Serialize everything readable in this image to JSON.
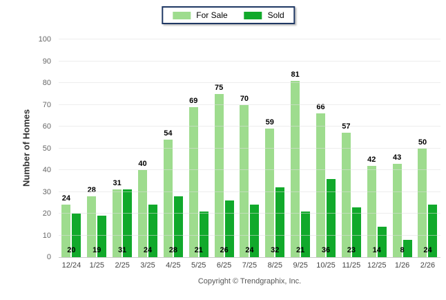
{
  "chart_data": {
    "type": "bar",
    "categories": [
      "12/24",
      "1/25",
      "2/25",
      "3/25",
      "4/25",
      "5/25",
      "6/25",
      "7/25",
      "8/25",
      "9/25",
      "10/25",
      "11/25",
      "12/25",
      "1/26",
      "2/26"
    ],
    "series": [
      {
        "name": "For Sale",
        "color": "#9edc8e",
        "values": [
          24,
          28,
          31,
          40,
          54,
          69,
          75,
          70,
          59,
          81,
          66,
          57,
          42,
          43,
          50
        ]
      },
      {
        "name": "Sold",
        "color": "#11a92b",
        "values": [
          20,
          19,
          31,
          24,
          28,
          21,
          26,
          24,
          32,
          21,
          36,
          23,
          14,
          8,
          24
        ]
      }
    ],
    "title": "",
    "xlabel": "",
    "ylabel": "Number of Homes",
    "ylim": [
      0,
      100
    ],
    "ytick_step": 10,
    "grid": true,
    "legend_position": "top-center",
    "legend_border_color": "#1f3864"
  },
  "footer": {
    "copyright": "Copyright © Trendgraphix, Inc."
  }
}
